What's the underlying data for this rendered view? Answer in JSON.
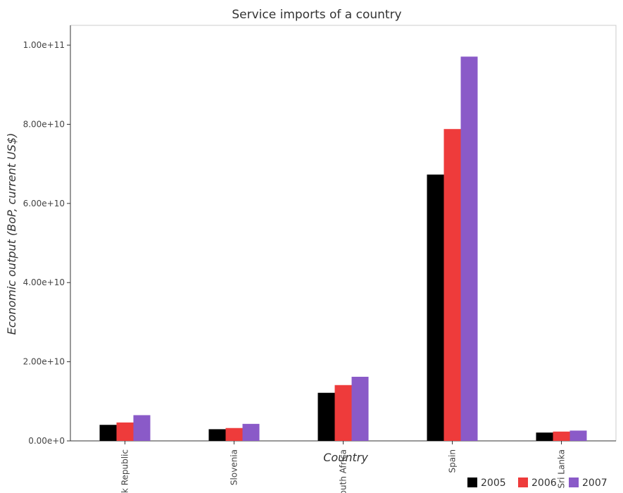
{
  "chart_data": {
    "type": "bar",
    "title": "Service imports of a country",
    "xlabel": "Country",
    "ylabel": "Economic output (BoP, current US$)",
    "categories": [
      "Slovak Republic",
      "Slovenia",
      "South Africa",
      "Spain",
      "Sri Lanka"
    ],
    "series": [
      {
        "name": "2005",
        "color": "#000000",
        "values": [
          4050000000.0,
          2950000000.0,
          12150000000.0,
          67300000000.0,
          2100000000.0
        ]
      },
      {
        "name": "2006",
        "color": "#ee3b3b",
        "values": [
          4650000000.0,
          3250000000.0,
          14100000000.0,
          78800000000.0,
          2350000000.0
        ]
      },
      {
        "name": "2007",
        "color": "#8a5ac8",
        "values": [
          6500000000.0,
          4300000000.0,
          16200000000.0,
          97100000000.0,
          2600000000.0
        ]
      }
    ],
    "ylim": [
      0,
      105000000000.0
    ],
    "yticks": [
      0,
      20000000000.0,
      40000000000.0,
      60000000000.0,
      80000000000.0,
      100000000000.0
    ],
    "ytick_labels": [
      "0.00e+0",
      "2.00e+10",
      "4.00e+10",
      "6.00e+10",
      "8.00e+10",
      "1.00e+11"
    ],
    "legend_position": "bottom-right",
    "grid": false
  }
}
